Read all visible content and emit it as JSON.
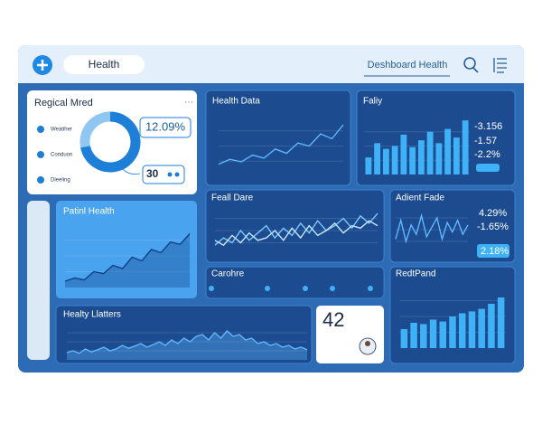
{
  "header": {
    "tab": "Health",
    "title": "Deshboard Health"
  },
  "regional": {
    "title": "Regical Mred",
    "legend": [
      "Weatiher",
      "Conduon",
      "Dleeling"
    ],
    "stat1": "12.09%",
    "stat2": "30",
    "donut": {
      "type": "donut",
      "values": [
        72,
        28
      ],
      "colors": [
        "#1e7fd8",
        "#8fc6f2"
      ]
    }
  },
  "stats": {
    "faliy": [
      "-3.156",
      "-1.57",
      "-2.2%"
    ],
    "adient": [
      "4.29%",
      "-1.65%",
      "2.18%"
    ],
    "count": "42"
  },
  "charts": {
    "health_data": {
      "type": "line",
      "title": "Health Data",
      "ylim": [
        0,
        100
      ],
      "series": [
        {
          "color": "#5fb6ff",
          "values": [
            20,
            28,
            24,
            35,
            30,
            45,
            38,
            55,
            50,
            70,
            62,
            85
          ]
        }
      ]
    },
    "faliy": {
      "type": "bar",
      "title": "Faliy",
      "ylim": [
        0,
        100
      ],
      "series": [
        {
          "color": "#3fb2f7",
          "values": [
            30,
            55,
            45,
            50,
            70,
            48,
            60,
            75,
            55,
            80,
            65,
            95
          ]
        }
      ]
    },
    "patient": {
      "type": "area",
      "title": "Patinl Health",
      "ylim": [
        0,
        100
      ],
      "series": [
        {
          "color": "#0f3f86",
          "values": [
            10,
            15,
            12,
            25,
            22,
            35,
            30,
            48,
            42,
            60,
            55,
            72,
            68,
            85
          ]
        }
      ]
    },
    "feall": {
      "type": "line",
      "title": "Feall Dare",
      "ylim": [
        0,
        100
      ],
      "series": [
        {
          "color": "#7cc7ff",
          "values": [
            20,
            35,
            25,
            50,
            30,
            45,
            60,
            35,
            55,
            40,
            65,
            45,
            70,
            50,
            60,
            75,
            55,
            80,
            65,
            85
          ]
        },
        {
          "color": "#c9e6ff",
          "values": [
            30,
            20,
            40,
            25,
            45,
            30,
            35,
            50,
            30,
            55,
            35,
            60,
            40,
            50,
            65,
            45,
            60,
            55,
            70,
            60
          ]
        }
      ]
    },
    "adient": {
      "type": "line",
      "title": "Adient Fade",
      "ylim": [
        0,
        100
      ],
      "series": [
        {
          "color": "#5fb6ff",
          "values": [
            30,
            70,
            25,
            60,
            40,
            80,
            35,
            55,
            75,
            30,
            65,
            45,
            70,
            40,
            60
          ]
        }
      ]
    },
    "cardiac": {
      "type": "none",
      "title": "Carohre"
    },
    "healthy": {
      "type": "area",
      "title": "Healty Llatters",
      "ylim": [
        0,
        100
      ],
      "series": [
        {
          "color": "#5fb6ff",
          "values": [
            20,
            25,
            18,
            30,
            22,
            28,
            35,
            25,
            30,
            40,
            32,
            38,
            45,
            35,
            42,
            50,
            40,
            55,
            45,
            60,
            50,
            65,
            70,
            55,
            75,
            60,
            80,
            65,
            70,
            55,
            60,
            45,
            50,
            40,
            45,
            35,
            40,
            30,
            35,
            28
          ]
        }
      ]
    },
    "reditand": {
      "type": "bar",
      "title": "RedtPand",
      "ylim": [
        0,
        100
      ],
      "series": [
        {
          "color": "#3fb2f7",
          "values": [
            30,
            40,
            38,
            45,
            42,
            50,
            55,
            58,
            62,
            70,
            80
          ]
        }
      ]
    }
  }
}
